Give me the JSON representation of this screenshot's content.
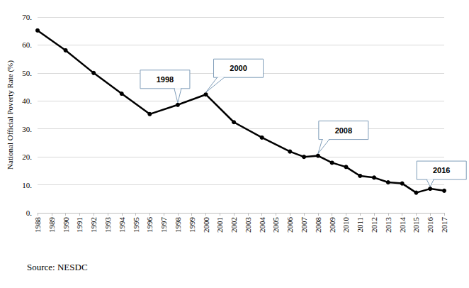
{
  "chart_data": {
    "type": "line",
    "y_label": "National Official Poverty Rate (%)",
    "source": "Source: NESDC",
    "x": [
      1988,
      1990,
      1992,
      1994,
      1996,
      1998,
      2000,
      2002,
      2004,
      2006,
      2007,
      2008,
      2009,
      2010,
      2011,
      2012,
      2013,
      2014,
      2015,
      2016,
      2017
    ],
    "values": [
      65.2,
      58.1,
      50.0,
      42.6,
      35.3,
      38.6,
      42.3,
      32.4,
      26.9,
      21.9,
      20.0,
      20.4,
      17.9,
      16.4,
      13.2,
      12.6,
      10.9,
      10.5,
      7.2,
      8.6,
      7.9
    ],
    "color": "#000000",
    "marker": "circle",
    "xlim": [
      1988,
      2017
    ],
    "xticks": [
      1988,
      1989,
      1990,
      1991,
      1992,
      1993,
      1994,
      1995,
      1996,
      1997,
      1998,
      1999,
      2000,
      2001,
      2002,
      2003,
      2004,
      2005,
      2006,
      2007,
      2008,
      2009,
      2010,
      2011,
      2012,
      2013,
      2014,
      2015,
      2016,
      2017
    ],
    "ylim": [
      0,
      70
    ],
    "yticks": [
      {
        "value": 0,
        "label": "0."
      },
      {
        "value": 10,
        "label": "10."
      },
      {
        "value": 20,
        "label": "20."
      },
      {
        "value": 30,
        "label": "30."
      },
      {
        "value": 40,
        "label": "40."
      },
      {
        "value": 50,
        "label": "50."
      },
      {
        "value": 60,
        "label": "60."
      },
      {
        "value": 70,
        "label": "70."
      }
    ],
    "grid": true,
    "annotations": [
      {
        "x": 1998,
        "y": 38.6,
        "text": "1998"
      },
      {
        "x": 2000,
        "y": 42.3,
        "text": "2000"
      },
      {
        "x": 2008,
        "y": 20.4,
        "text": "2008"
      },
      {
        "x": 2016,
        "y": 8.6,
        "text": "2016"
      }
    ]
  }
}
